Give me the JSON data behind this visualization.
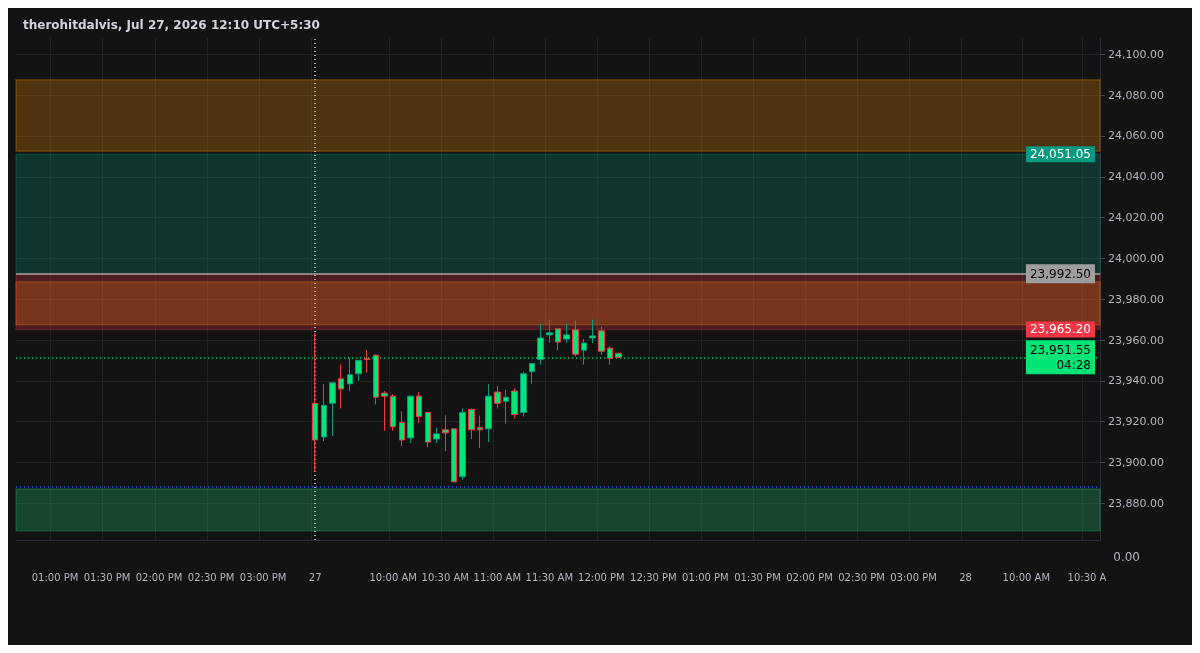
{
  "chart_data": {
    "type": "candlestick",
    "title": "therohitdalvis, Jul 27, 2026 12:10 UTC+5:30",
    "categories": [
      null,
      null,
      null,
      null,
      "01:00 PM",
      null,
      null,
      null,
      null,
      null,
      "01:30 PM",
      null,
      null,
      null,
      null,
      null,
      "02:00 PM",
      null,
      null,
      null,
      null,
      null,
      "02:30 PM",
      null,
      null,
      null,
      null,
      null,
      "03:00 PM",
      null,
      null,
      null,
      null,
      null,
      "27",
      null,
      null,
      null,
      null,
      null,
      null,
      null,
      null,
      "10:00 AM",
      null,
      null,
      null,
      null,
      null,
      "10:30 AM",
      null,
      null,
      null,
      null,
      null,
      "11:00 AM",
      null,
      null,
      null,
      null,
      null,
      "11:30 AM",
      null,
      null,
      null,
      null,
      null,
      "12:00 PM",
      null,
      null,
      null,
      null,
      null,
      "12:30 PM",
      null,
      null,
      null,
      null,
      null,
      "01:00 PM",
      null,
      null,
      null,
      null,
      null,
      "01:30 PM",
      null,
      null,
      null,
      null,
      null,
      "02:00 PM",
      null,
      null,
      null,
      null,
      null,
      "02:30 PM",
      null,
      null,
      null,
      null,
      null,
      "03:00 PM",
      null,
      null,
      null,
      null,
      null,
      "28",
      null,
      null,
      null,
      null,
      null,
      null,
      "10:00 AM",
      null,
      null,
      null,
      null,
      null,
      null,
      "10:30 A",
      null
    ],
    "ohlc": [
      null,
      null,
      null,
      null,
      null,
      null,
      null,
      null,
      null,
      null,
      null,
      null,
      null,
      null,
      null,
      null,
      null,
      null,
      null,
      null,
      null,
      null,
      null,
      null,
      null,
      null,
      null,
      null,
      null,
      null,
      null,
      null,
      null,
      null,
      [
        23929,
        23963.5,
        23895.5,
        23911
      ],
      [
        23912.5,
        23938.5,
        23910.5,
        23928
      ],
      [
        23929,
        23939,
        23913,
        23939
      ],
      [
        23941,
        23948,
        23926.5,
        23936
      ],
      [
        23938.5,
        23951.5,
        23935,
        23943
      ],
      [
        23943.5,
        23950,
        23940,
        23950
      ],
      [
        23951,
        23955,
        23944,
        23950.5
      ],
      [
        23952.5,
        23953,
        23928.5,
        23932
      ],
      [
        23934,
        23935,
        23915.5,
        23932.5
      ],
      [
        23932.5,
        23933.5,
        23915.5,
        23917.5
      ],
      [
        23919.5,
        23925,
        23908,
        23911
      ],
      [
        23912,
        23932.5,
        23909.5,
        23932.5
      ],
      [
        23932.5,
        23934.5,
        23919.5,
        23922.5
      ],
      [
        23924.5,
        23924.5,
        23907.5,
        23910
      ],
      [
        23911.5,
        23917,
        23909.5,
        23914
      ],
      [
        23916,
        23923,
        23905.5,
        23914.5
      ],
      [
        23916.5,
        23916.5,
        23890.5,
        23890.5
      ],
      [
        23893,
        23926.5,
        23891.5,
        23924.5
      ],
      [
        23926,
        23926.5,
        23911.5,
        23916
      ],
      [
        23917,
        23923,
        23907,
        23916
      ],
      [
        23916.5,
        23938.5,
        23910,
        23932.5
      ],
      [
        23934.5,
        23937.5,
        23926.5,
        23929
      ],
      [
        23930,
        23935.5,
        23919,
        23932
      ],
      [
        23935,
        23936.5,
        23921.5,
        23923.5
      ],
      [
        23924.5,
        23944.5,
        23922.5,
        23943.5
      ],
      [
        23944.5,
        23948.5,
        23938.5,
        23948.5
      ],
      [
        23950.5,
        23968,
        23948,
        23961
      ],
      [
        23962.5,
        23970,
        23958.5,
        23963.5
      ],
      [
        23965.5,
        23965.5,
        23955,
        23959
      ],
      [
        23960.5,
        23968,
        23958.5,
        23962.5
      ],
      [
        23965,
        23969.5,
        23952,
        23953
      ],
      [
        23955,
        23960.5,
        23948,
        23958.5
      ],
      [
        23961,
        23970,
        23958.5,
        23962
      ],
      [
        23964.5,
        23966.5,
        23952.5,
        23954.5
      ],
      [
        23956,
        23957,
        23948,
        23951
      ],
      [
        23953.5,
        23953.5,
        23951.55,
        23951.55
      ],
      null,
      null,
      null,
      null,
      null,
      null,
      null,
      null,
      null,
      null,
      null,
      null,
      null,
      null,
      null,
      null,
      null,
      null,
      null,
      null,
      null,
      null,
      null,
      null,
      null,
      null,
      null,
      null,
      null,
      null,
      null,
      null,
      null,
      null,
      null,
      null,
      null,
      null,
      null,
      null,
      null,
      null,
      null,
      null,
      null,
      null,
      null,
      null,
      null,
      null,
      null,
      null,
      null,
      null,
      null
    ],
    "ylim": [
      23862,
      24108
    ],
    "yticks": [
      {
        "value": 23880,
        "label": "23,880.00"
      },
      {
        "value": 23900,
        "label": "23,900.00"
      },
      {
        "value": 23920,
        "label": "23,920.00"
      },
      {
        "value": 23940,
        "label": "23,940.00"
      },
      {
        "value": 23960,
        "label": "23,960.00"
      },
      {
        "value": 23980,
        "label": "23,980.00"
      },
      {
        "value": 24000,
        "label": "24,000.00"
      },
      {
        "value": 24020,
        "label": "24,020.00"
      },
      {
        "value": 24040,
        "label": "24,040.00"
      },
      {
        "value": 24060,
        "label": "24,060.00"
      },
      {
        "value": 24080,
        "label": "24,080.00"
      },
      {
        "value": 24100,
        "label": "24,100.00"
      }
    ],
    "grid": true,
    "bands": [
      {
        "axis": "y",
        "from": 24052.5,
        "to": 24087.5,
        "color": "#ff9800"
      },
      {
        "axis": "y",
        "from": 23967.5,
        "to": 23988.5,
        "color": "#ff9800"
      },
      {
        "axis": "y",
        "from": 23866.5,
        "to": 23887,
        "color": "#1fd67a"
      },
      {
        "axis": "y",
        "from": 23992.5,
        "to": 24051.05,
        "label": "24,051.05",
        "color": "#089981"
      },
      {
        "axis": "y",
        "from": 23992.5,
        "to": 23965.2,
        "label": "23,965.20",
        "color": "#f23645"
      }
    ],
    "ref_lines": [
      {
        "axis": "y",
        "value": 23992.5,
        "label": "23,992.50",
        "color": "#9e9e9e",
        "line_style": "solid"
      },
      {
        "axis": "y",
        "value": 23951.55,
        "label": "23,951.55\n04:28",
        "color": "#00e676",
        "line_style": "dotted"
      },
      {
        "axis": "y",
        "value": 23888,
        "color": "#2962ff",
        "line_style": "dotted"
      },
      {
        "axis": "x",
        "value": "27",
        "color": "#d1d4dc",
        "line_style": "dotted"
      }
    ],
    "annotations": [
      "0.00"
    ]
  }
}
